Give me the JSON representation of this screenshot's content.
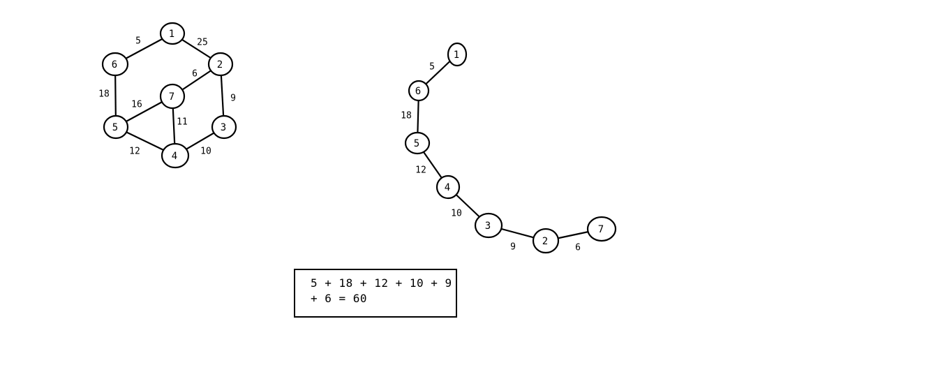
{
  "colors": {
    "stroke": "#000000",
    "background": "#ffffff"
  },
  "graph": {
    "nodes": [
      "1",
      "2",
      "3",
      "4",
      "5",
      "6",
      "7"
    ],
    "edges": [
      {
        "from": "1",
        "to": "6",
        "weight": "5"
      },
      {
        "from": "1",
        "to": "2",
        "weight": "25"
      },
      {
        "from": "2",
        "to": "7",
        "weight": "6"
      },
      {
        "from": "2",
        "to": "3",
        "weight": "9"
      },
      {
        "from": "6",
        "to": "5",
        "weight": "18"
      },
      {
        "from": "7",
        "to": "5",
        "weight": "16"
      },
      {
        "from": "7",
        "to": "4",
        "weight": "11"
      },
      {
        "from": "5",
        "to": "4",
        "weight": "12"
      },
      {
        "from": "4",
        "to": "3",
        "weight": "10"
      }
    ]
  },
  "spanning_tree": {
    "nodes": [
      "1",
      "6",
      "5",
      "4",
      "3",
      "2",
      "7"
    ],
    "edges": [
      {
        "from": "1",
        "to": "6",
        "weight": "5"
      },
      {
        "from": "6",
        "to": "5",
        "weight": "18"
      },
      {
        "from": "5",
        "to": "4",
        "weight": "12"
      },
      {
        "from": "4",
        "to": "3",
        "weight": "10"
      },
      {
        "from": "3",
        "to": "2",
        "weight": "9"
      },
      {
        "from": "2",
        "to": "7",
        "weight": "6"
      }
    ]
  },
  "sum": {
    "line1": "5 + 18 + 12 + 10 + 9",
    "line2": "+ 6 = 60"
  }
}
